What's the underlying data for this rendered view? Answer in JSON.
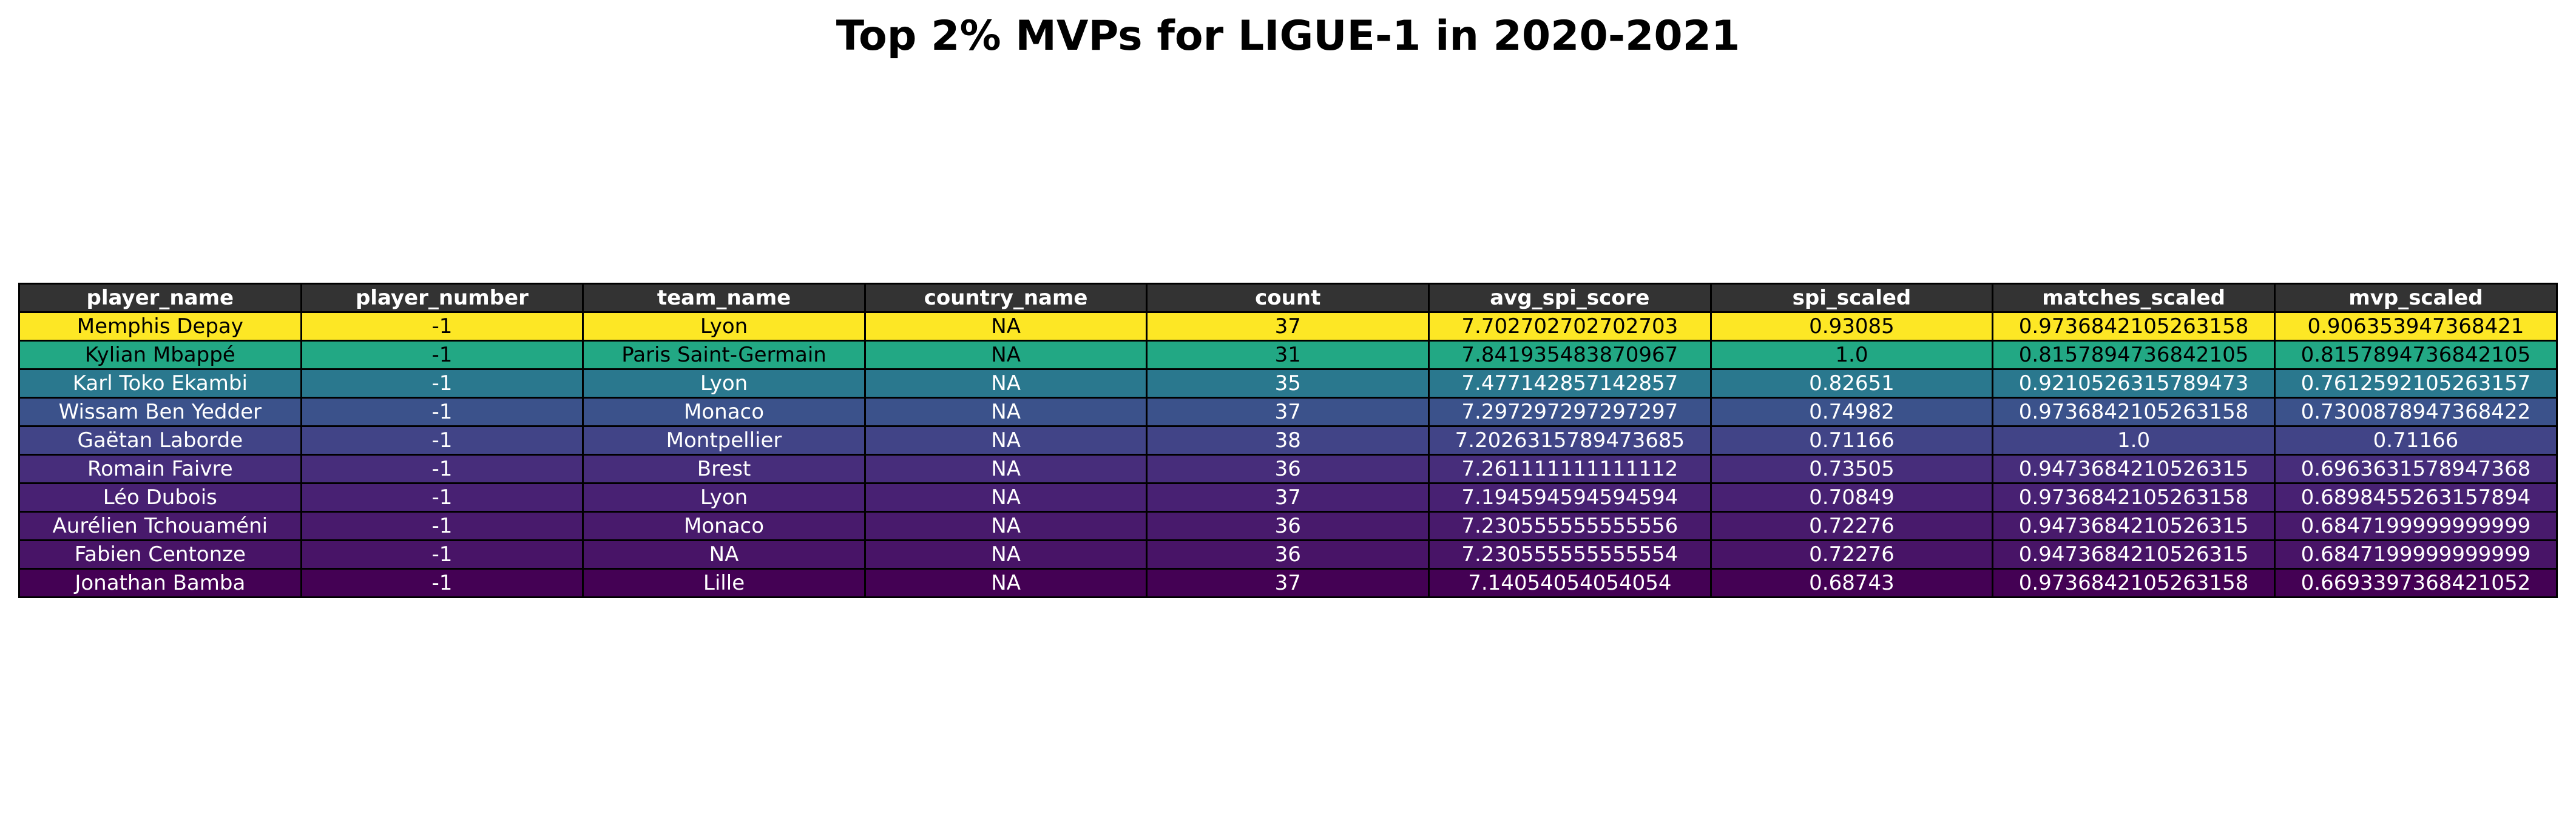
{
  "chart_data": {
    "type": "table",
    "title": "Top 2% MVPs for LIGUE-1 in 2020-2021",
    "header_color": "#333333",
    "columns": [
      "player_name",
      "player_number",
      "team_name",
      "country_name",
      "count",
      "avg_spi_score",
      "spi_scaled",
      "matches_scaled",
      "mvp_scaled"
    ],
    "rows": [
      {
        "values": [
          "Memphis Depay",
          "-1",
          "Lyon",
          "NA",
          "37",
          "7.702702702702703",
          "0.93085",
          "0.9736842105263158",
          "0.906353947368421"
        ],
        "fill": "#fde725",
        "text_color": "#000000"
      },
      {
        "values": [
          "Kylian Mbappé",
          "-1",
          "Paris Saint-Germain",
          "NA",
          "31",
          "7.841935483870967",
          "1.0",
          "0.8157894736842105",
          "0.8157894736842105"
        ],
        "fill": "#22a884",
        "text_color": "#000000"
      },
      {
        "values": [
          "Karl Toko Ekambi",
          "-1",
          "Lyon",
          "NA",
          "35",
          "7.477142857142857",
          "0.82651",
          "0.9210526315789473",
          "0.7612592105263157"
        ],
        "fill": "#2a788e",
        "text_color": "#ffffff"
      },
      {
        "values": [
          "Wissam Ben Yedder",
          "-1",
          "Monaco",
          "NA",
          "37",
          "7.297297297297297",
          "0.74982",
          "0.9736842105263158",
          "0.7300878947368422"
        ],
        "fill": "#3b528b",
        "text_color": "#ffffff"
      },
      {
        "values": [
          "Gaëtan Laborde",
          "-1",
          "Montpellier",
          "NA",
          "38",
          "7.2026315789473685",
          "0.71166",
          "1.0",
          "0.71166"
        ],
        "fill": "#414487",
        "text_color": "#ffffff"
      },
      {
        "values": [
          "Romain Faivre",
          "-1",
          "Brest",
          "NA",
          "36",
          "7.261111111111112",
          "0.73505",
          "0.9473684210526315",
          "0.6963631578947368"
        ],
        "fill": "#472d7b",
        "text_color": "#ffffff"
      },
      {
        "values": [
          "Léo Dubois",
          "-1",
          "Lyon",
          "NA",
          "37",
          "7.194594594594594",
          "0.70849",
          "0.9736842105263158",
          "0.6898455263157894"
        ],
        "fill": "#482173",
        "text_color": "#ffffff"
      },
      {
        "values": [
          "Aurélien Tchouaméni",
          "-1",
          "Monaco",
          "NA",
          "36",
          "7.230555555555556",
          "0.72276",
          "0.9473684210526315",
          "0.6847199999999999"
        ],
        "fill": "#481a6c",
        "text_color": "#ffffff"
      },
      {
        "values": [
          "Fabien Centonze",
          "-1",
          "NA",
          "NA",
          "36",
          "7.230555555555554",
          "0.72276",
          "0.9473684210526315",
          "0.6847199999999999"
        ],
        "fill": "#481467",
        "text_color": "#ffffff"
      },
      {
        "values": [
          "Jonathan Bamba",
          "-1",
          "Lille",
          "NA",
          "37",
          "7.14054054054054",
          "0.68743",
          "0.9736842105263158",
          "0.6693397368421052"
        ],
        "fill": "#440154",
        "text_color": "#ffffff"
      }
    ]
  }
}
